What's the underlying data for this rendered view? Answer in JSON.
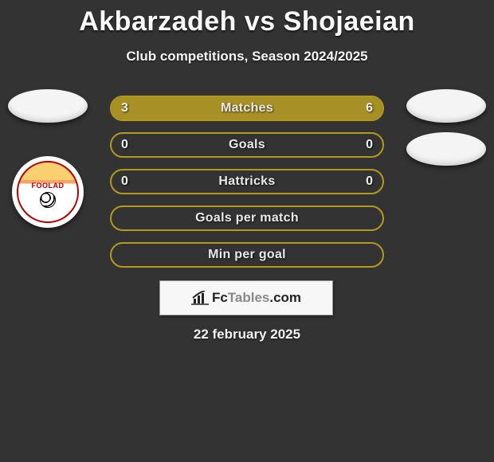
{
  "title": "Akbarzadeh vs Shojaeian",
  "subtitle": "Club competitions, Season 2024/2025",
  "date": "22 february 2025",
  "colors": {
    "background": "#333333",
    "bar_border": "#b39a1f",
    "bar_fill": "#a79126",
    "text": "#f2f2f2",
    "title": "#f9f9f9"
  },
  "badges": {
    "left": [
      {
        "type": "oval",
        "name": "player1-club-badge-1"
      },
      {
        "type": "foolad",
        "name": "player1-club-badge-2",
        "text": "FOOLAD"
      }
    ],
    "right": [
      {
        "type": "oval",
        "name": "player2-club-badge-1"
      },
      {
        "type": "oval",
        "name": "player2-club-badge-2"
      }
    ]
  },
  "rows": [
    {
      "label": "Matches",
      "left": "3",
      "right": "6",
      "left_pct": 30,
      "right_pct": 70
    },
    {
      "label": "Goals",
      "left": "0",
      "right": "0",
      "left_pct": 0,
      "right_pct": 0
    },
    {
      "label": "Hattricks",
      "left": "0",
      "right": "0",
      "left_pct": 0,
      "right_pct": 0
    },
    {
      "label": "Goals per match",
      "left": "",
      "right": "",
      "left_pct": 0,
      "right_pct": 0
    },
    {
      "label": "Min per goal",
      "left": "",
      "right": "",
      "left_pct": 0,
      "right_pct": 0
    }
  ],
  "branding": {
    "name_a": "Fc",
    "name_b": "Tables",
    "name_c": ".com"
  }
}
